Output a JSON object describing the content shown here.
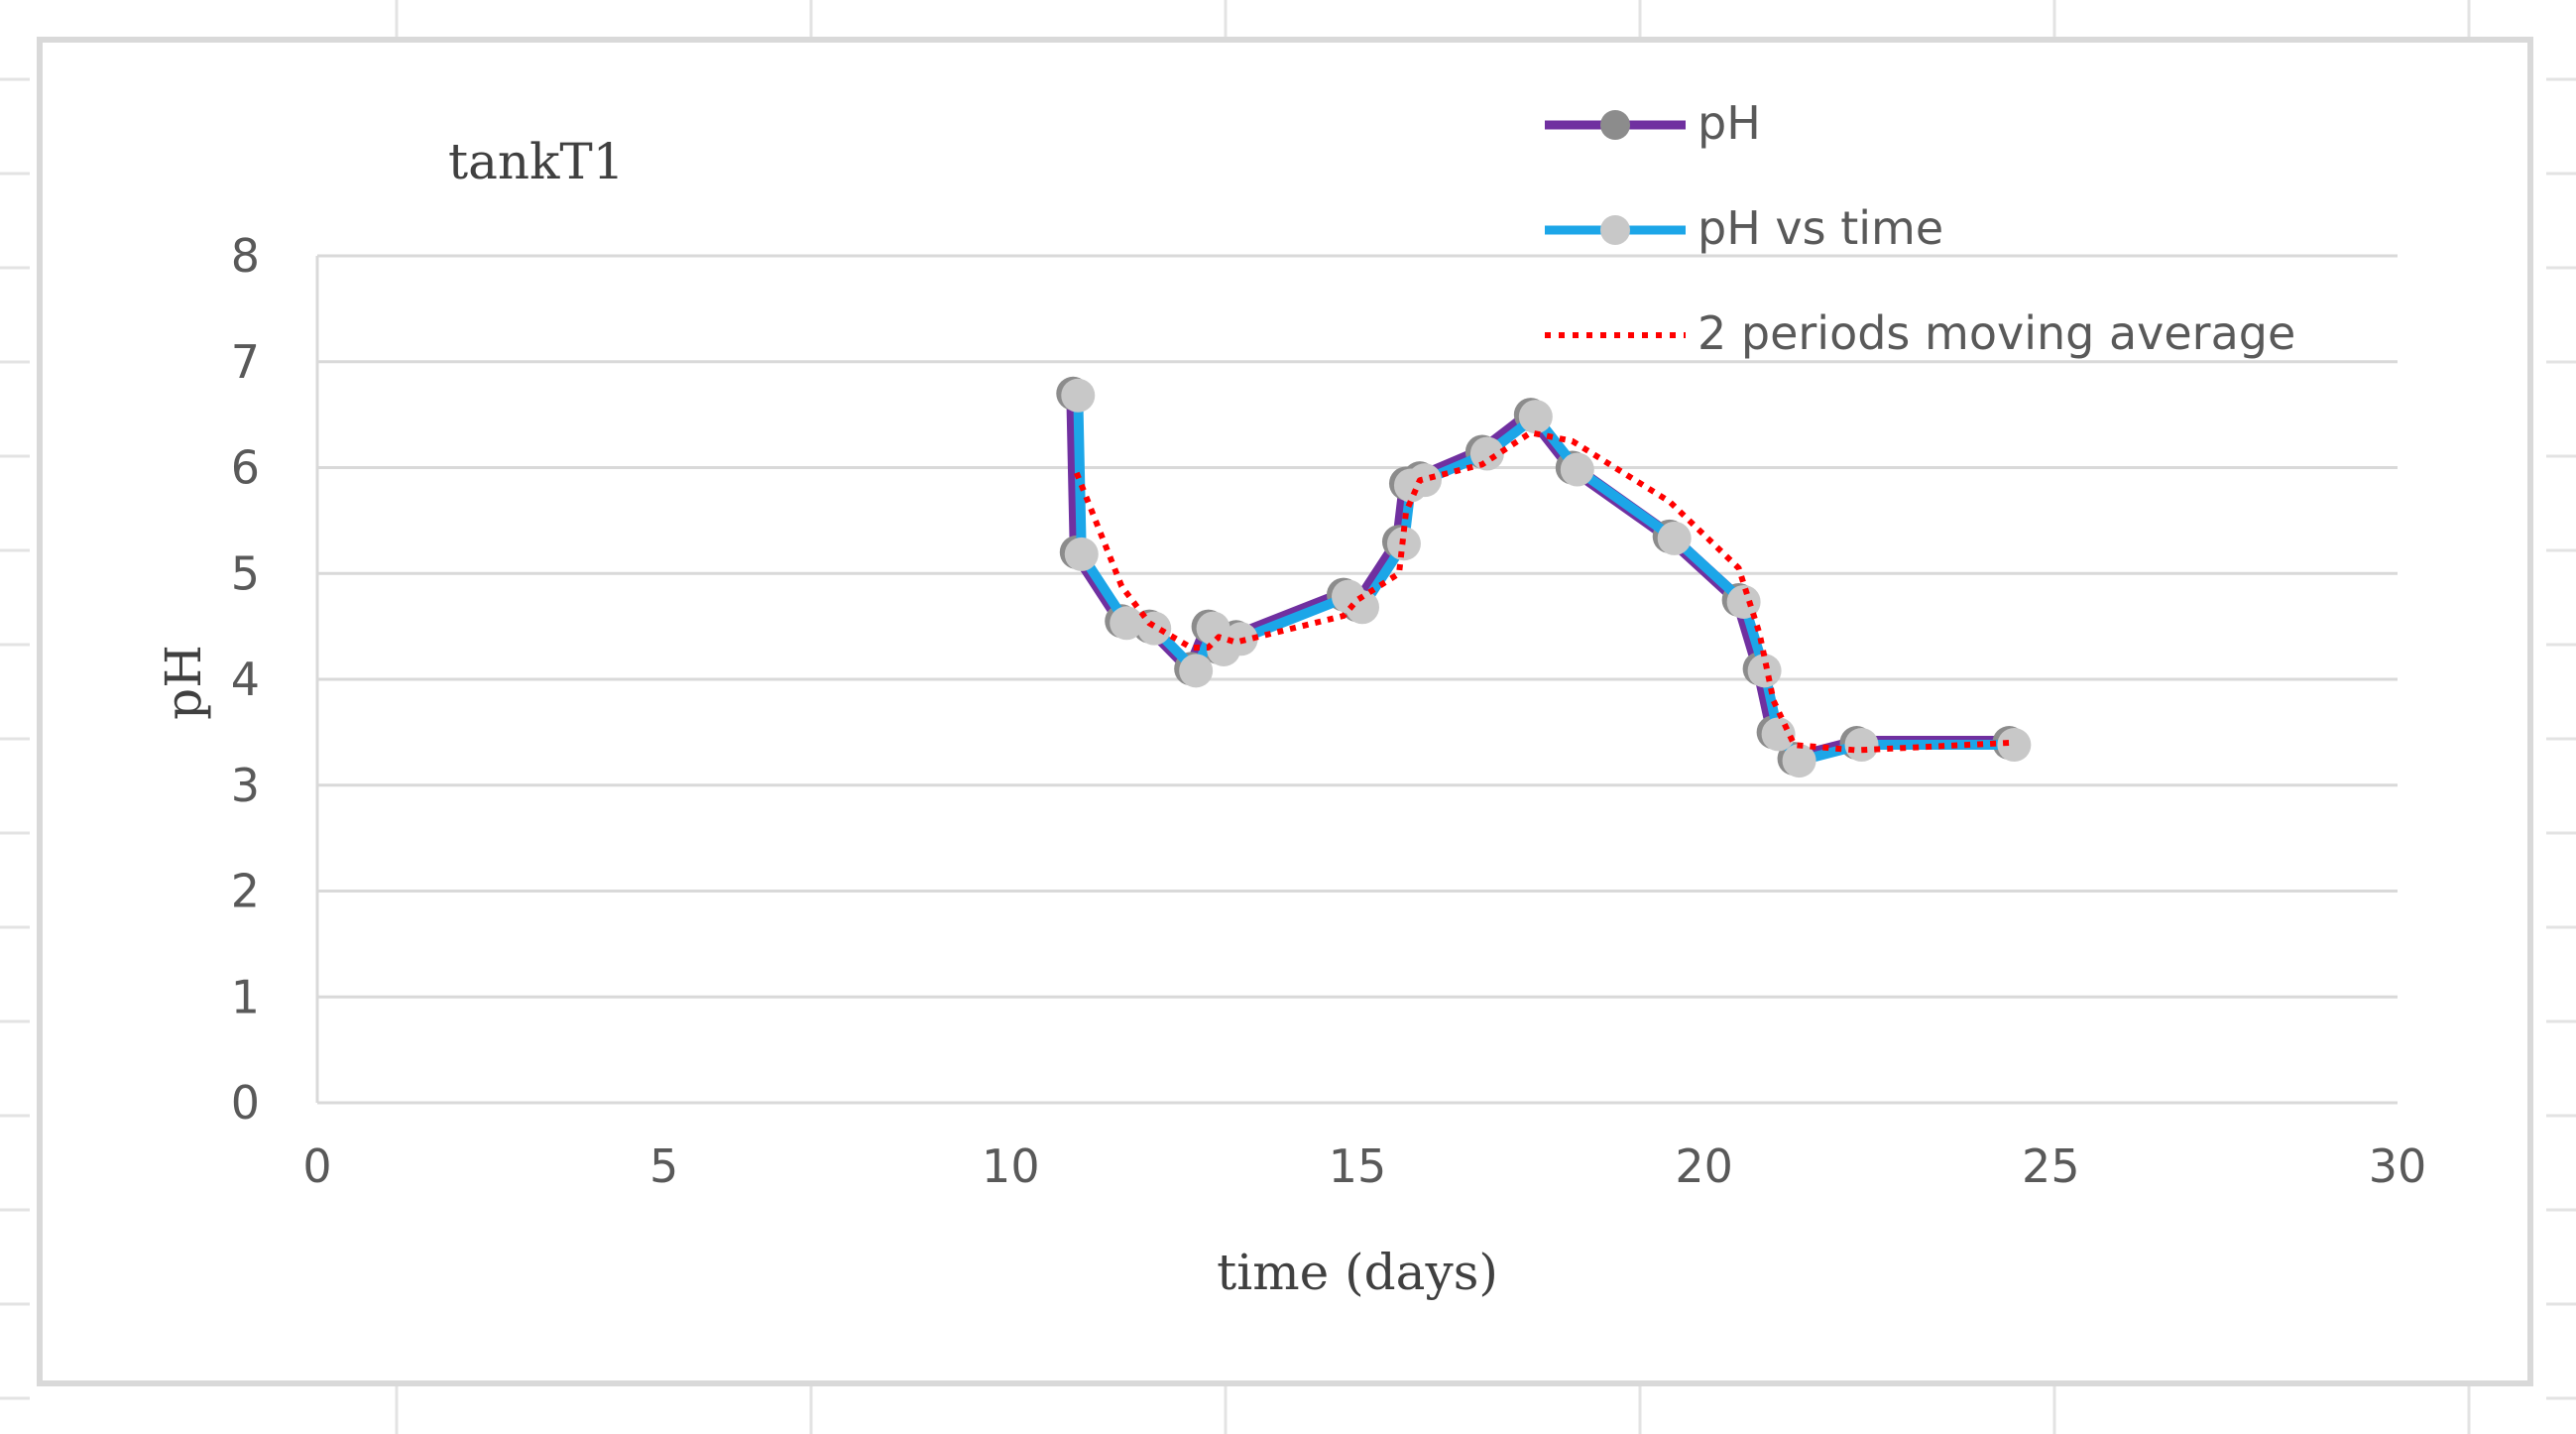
{
  "chart_data": {
    "type": "line",
    "title": "tankT1",
    "xlabel": "time (days)",
    "ylabel": "pH",
    "xlim": [
      0,
      30
    ],
    "ylim": [
      0,
      8
    ],
    "x_ticks": [
      "0",
      "5",
      "10",
      "15",
      "20",
      "25",
      "30"
    ],
    "y_ticks": [
      "0",
      "1",
      "2",
      "3",
      "4",
      "5",
      "6",
      "7",
      "8"
    ],
    "grid": "horizontal",
    "legend_position": "top-right",
    "series": [
      {
        "name": "pH",
        "color": "#7030a0",
        "marker_color": "#8c8c8c",
        "x": [
          10.9,
          10.95,
          11.6,
          12.0,
          12.6,
          12.85,
          13.0,
          13.25,
          14.8,
          15.0,
          15.6,
          15.7,
          15.9,
          16.8,
          17.5,
          18.1,
          19.5,
          20.5,
          20.8,
          21.0,
          21.3,
          22.2,
          24.4
        ],
        "y": [
          6.7,
          5.2,
          4.55,
          4.5,
          4.1,
          4.5,
          4.3,
          4.4,
          4.8,
          4.7,
          5.3,
          5.85,
          5.9,
          6.15,
          6.5,
          6.0,
          5.35,
          4.75,
          4.1,
          3.5,
          3.25,
          3.4,
          3.4
        ]
      },
      {
        "name": "pH vs time",
        "color": "#1ca6e8",
        "marker_color": "#c8c8c8",
        "x": [
          10.9,
          10.95,
          11.6,
          12.0,
          12.6,
          12.85,
          13.0,
          13.25,
          14.8,
          15.0,
          15.6,
          15.7,
          15.9,
          16.8,
          17.5,
          18.1,
          19.5,
          20.5,
          20.8,
          21.0,
          21.3,
          22.2,
          24.4
        ],
        "y": [
          6.7,
          5.2,
          4.55,
          4.5,
          4.1,
          4.5,
          4.3,
          4.4,
          4.8,
          4.7,
          5.3,
          5.85,
          5.9,
          6.15,
          6.5,
          6.0,
          5.35,
          4.75,
          4.1,
          3.5,
          3.25,
          3.4,
          3.4
        ]
      },
      {
        "name": "2 periods moving average",
        "color": "#ff0000",
        "style": "dotted",
        "x": [
          10.95,
          11.6,
          12.0,
          12.6,
          12.85,
          13.0,
          13.25,
          14.8,
          15.0,
          15.6,
          15.7,
          15.9,
          16.8,
          17.5,
          18.1,
          19.5,
          20.5,
          20.8,
          21.0,
          21.3,
          22.2,
          24.4
        ],
        "y": [
          5.95,
          4.88,
          4.53,
          4.3,
          4.3,
          4.4,
          4.35,
          4.6,
          4.75,
          5.0,
          5.58,
          5.88,
          6.03,
          6.33,
          6.25,
          5.68,
          5.05,
          4.43,
          3.8,
          3.38,
          3.33,
          3.4
        ]
      }
    ]
  }
}
